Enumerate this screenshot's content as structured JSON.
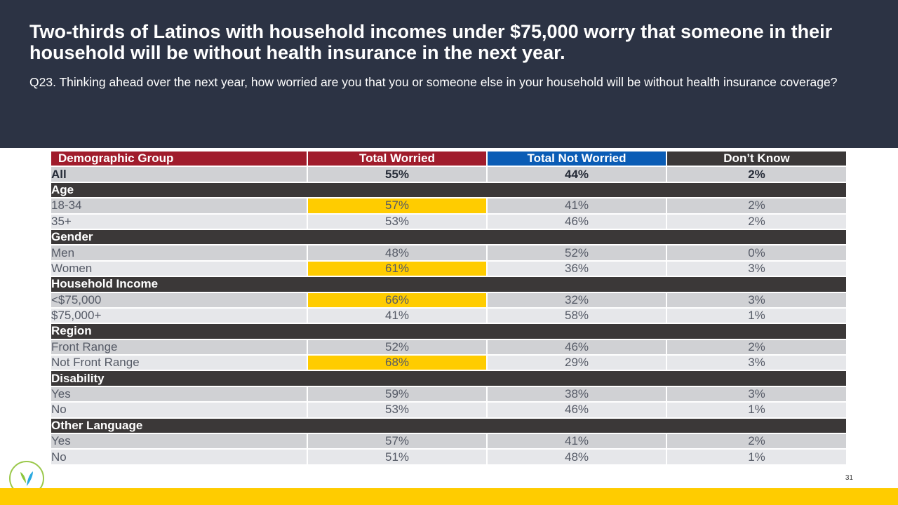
{
  "header": {
    "title": "Two-thirds of Latinos with household incomes under $75,000 worry that someone in their household will be without health insurance in the next year.",
    "question": "Q23. Thinking ahead over the next year, how worried are you that you or someone else in your household will be without health insurance coverage?"
  },
  "table": {
    "columns": [
      {
        "label": "Demographic Group",
        "color": "#a01c2c"
      },
      {
        "label": "Total Worried",
        "color": "#a01c2c"
      },
      {
        "label": "Total Not Worried",
        "color": "#0a5cb5"
      },
      {
        "label": "Don’t Know",
        "color": "#3b3838"
      }
    ],
    "highlight_color": "#ffcc00",
    "all_row": {
      "label": "All",
      "worried": "55%",
      "not_worried": "44%",
      "dont_know": "2%"
    },
    "sections": [
      {
        "name": "Age",
        "rows": [
          {
            "label": "18-34",
            "worried": "57%",
            "not_worried": "41%",
            "dont_know": "2%",
            "highlight": true
          },
          {
            "label": "35+",
            "worried": "53%",
            "not_worried": "46%",
            "dont_know": "2%",
            "highlight": false
          }
        ]
      },
      {
        "name": "Gender",
        "rows": [
          {
            "label": "Men",
            "worried": "48%",
            "not_worried": "52%",
            "dont_know": "0%",
            "highlight": false
          },
          {
            "label": "Women",
            "worried": "61%",
            "not_worried": "36%",
            "dont_know": "3%",
            "highlight": true
          }
        ]
      },
      {
        "name": "Household Income",
        "rows": [
          {
            "label": "<$75,000",
            "worried": "66%",
            "not_worried": "32%",
            "dont_know": "3%",
            "highlight": true
          },
          {
            "label": "$75,000+",
            "worried": "41%",
            "not_worried": "58%",
            "dont_know": "1%",
            "highlight": false
          }
        ]
      },
      {
        "name": "Region",
        "rows": [
          {
            "label": "Front Range",
            "worried": "52%",
            "not_worried": "46%",
            "dont_know": "2%",
            "highlight": false
          },
          {
            "label": "Not Front Range",
            "worried": "68%",
            "not_worried": "29%",
            "dont_know": "3%",
            "highlight": true
          }
        ]
      },
      {
        "name": "Disability",
        "rows": [
          {
            "label": "Yes",
            "worried": "59%",
            "not_worried": "38%",
            "dont_know": "3%",
            "highlight": false
          },
          {
            "label": "No",
            "worried": "53%",
            "not_worried": "46%",
            "dont_know": "1%",
            "highlight": false
          }
        ]
      },
      {
        "name": "Other Language",
        "rows": [
          {
            "label": "Yes",
            "worried": "57%",
            "not_worried": "41%",
            "dont_know": "2%",
            "highlight": false
          },
          {
            "label": "No",
            "worried": "51%",
            "not_worried": "48%",
            "dont_know": "1%",
            "highlight": false
          }
        ]
      }
    ]
  },
  "footer": {
    "page_number": "31",
    "logo_icon": "leaf-logo-icon",
    "accent_color": "#ffcc00"
  }
}
